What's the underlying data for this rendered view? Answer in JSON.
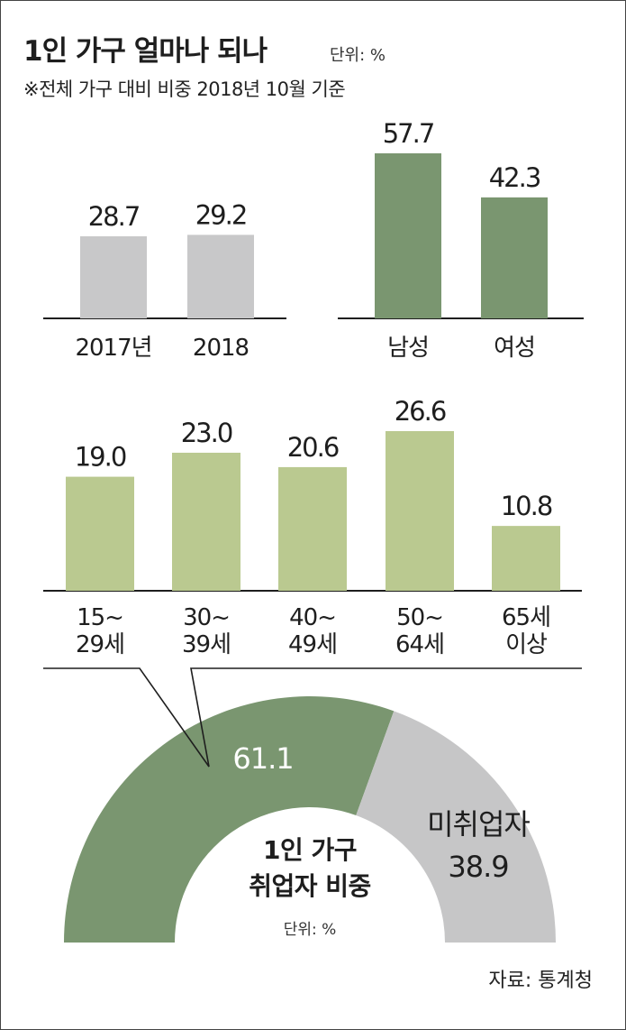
{
  "title": "1인 가구 얼마나 되나",
  "unit": "단위: %",
  "subtitle": "※전체 가구 대비 비중 2018년 10월 기준",
  "source": "자료: 통계청",
  "colors": {
    "gray_bar": "#c8c8c9",
    "dark_green": "#7a9670",
    "light_green": "#bac990",
    "unemployed_gray": "#c6c6c7",
    "axis": "#1e1e1e"
  },
  "chart_data": [
    {
      "id": "by-year",
      "type": "bar",
      "categories": [
        "2017년",
        "2018"
      ],
      "values": [
        28.7,
        29.2
      ],
      "value_labels": [
        "28.7",
        "29.2"
      ],
      "ylim": [
        0,
        60
      ]
    },
    {
      "id": "by-gender",
      "type": "bar",
      "categories": [
        "남성",
        "여성"
      ],
      "values": [
        57.7,
        42.3
      ],
      "value_labels": [
        "57.7",
        "42.3"
      ],
      "ylim": [
        0,
        60
      ]
    },
    {
      "id": "by-age",
      "type": "bar",
      "categories": [
        [
          "15~",
          "29세"
        ],
        [
          "30~",
          "39세"
        ],
        [
          "40~",
          "49세"
        ],
        [
          "50~",
          "64세"
        ],
        [
          "65세",
          "이상"
        ]
      ],
      "values": [
        19.0,
        23.0,
        20.6,
        26.6,
        10.8
      ],
      "value_labels": [
        "19.0",
        "23.0",
        "20.6",
        "26.6",
        "10.8"
      ],
      "ylim": [
        0,
        30
      ]
    },
    {
      "id": "employment",
      "type": "pie",
      "subtype": "half-donut",
      "title_lines": [
        "1인 가구",
        "취업자 비중"
      ],
      "unit": "단위: %",
      "slices": [
        {
          "label": "",
          "value": 61.1,
          "value_label": "61.1"
        },
        {
          "label": "미취업자",
          "value": 38.9,
          "value_label": "38.9"
        }
      ]
    }
  ]
}
